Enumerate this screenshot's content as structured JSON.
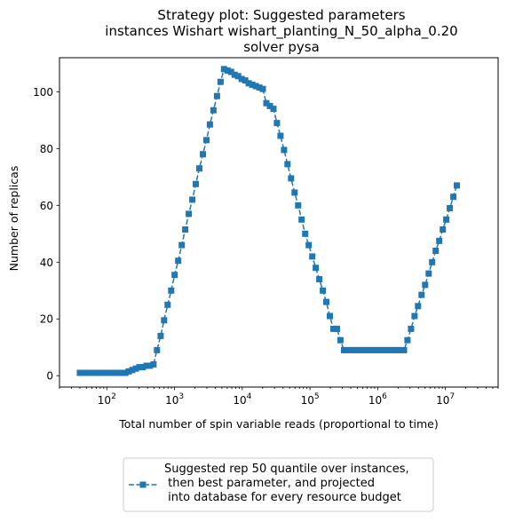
{
  "chart_data": {
    "type": "line",
    "title_lines": [
      "Strategy plot: Suggested parameters",
      "instances Wishart wishart_planting_N_50_alpha_0.20",
      "solver pysa"
    ],
    "xlabel": "Total number of spin variable reads (proportional to time)",
    "ylabel": "Number of replicas",
    "x_scale": "log",
    "xlim": [
      20,
      60000000
    ],
    "ylim": [
      -4,
      112
    ],
    "x_ticks": [
      {
        "value": 100,
        "base": "10",
        "exp": "2"
      },
      {
        "value": 1000,
        "base": "10",
        "exp": "3"
      },
      {
        "value": 10000,
        "base": "10",
        "exp": "4"
      },
      {
        "value": 100000,
        "base": "10",
        "exp": "5"
      },
      {
        "value": 1000000,
        "base": "10",
        "exp": "6"
      },
      {
        "value": 10000000,
        "base": "10",
        "exp": "7"
      }
    ],
    "y_ticks": [
      0,
      20,
      40,
      60,
      80,
      100
    ],
    "y_tick_labels": [
      "0",
      "20",
      "40",
      "60",
      "80",
      "100"
    ],
    "grid": false,
    "legend_position": "below plot, centered",
    "series": [
      {
        "name": "Suggested rep 50 quantile over instances,\n then best parameter, and projected\n into database for every resource budget",
        "color": "#1f77b4",
        "marker": "square",
        "line_style": "dashed",
        "points": [
          [
            40,
            1
          ],
          [
            45,
            1
          ],
          [
            50,
            1
          ],
          [
            57,
            1
          ],
          [
            64,
            1
          ],
          [
            72,
            1
          ],
          [
            81,
            1
          ],
          [
            92,
            1
          ],
          [
            103,
            1
          ],
          [
            116,
            1
          ],
          [
            131,
            1
          ],
          [
            148,
            1
          ],
          [
            166,
            1
          ],
          [
            188,
            1
          ],
          [
            211,
            1.5
          ],
          [
            238,
            2
          ],
          [
            269,
            2.5
          ],
          [
            303,
            3
          ],
          [
            341,
            3
          ],
          [
            385,
            3.5
          ],
          [
            434,
            3.5
          ],
          [
            489,
            4
          ],
          [
            551,
            9
          ],
          [
            622,
            14
          ],
          [
            701,
            19.5
          ],
          [
            790,
            25
          ],
          [
            891,
            30
          ],
          [
            1004,
            35.5
          ],
          [
            1132,
            40.5
          ],
          [
            1276,
            46
          ],
          [
            1439,
            51.5
          ],
          [
            1622,
            57
          ],
          [
            1829,
            62
          ],
          [
            2062,
            67.5
          ],
          [
            2325,
            73
          ],
          [
            2621,
            78
          ],
          [
            2955,
            83
          ],
          [
            3332,
            88.5
          ],
          [
            3756,
            93.5
          ],
          [
            4235,
            98.5
          ],
          [
            4775,
            103.5
          ],
          [
            5383,
            108
          ],
          [
            6069,
            107.5
          ],
          [
            6843,
            107
          ],
          [
            7715,
            106
          ],
          [
            8698,
            105.5
          ],
          [
            9806,
            104.5
          ],
          [
            11056,
            104
          ],
          [
            12465,
            103
          ],
          [
            14053,
            102.5
          ],
          [
            15844,
            102
          ],
          [
            17863,
            101.5
          ],
          [
            20139,
            101
          ],
          [
            22706,
            96
          ],
          [
            25599,
            95
          ],
          [
            28861,
            94
          ],
          [
            32539,
            89
          ],
          [
            36685,
            84.5
          ],
          [
            41361,
            79.5
          ],
          [
            46631,
            74.5
          ],
          [
            52574,
            69.5
          ],
          [
            59273,
            64.5
          ],
          [
            66827,
            60
          ],
          [
            75343,
            55
          ],
          [
            84944,
            50
          ],
          [
            95769,
            46
          ],
          [
            107973,
            42
          ],
          [
            121733,
            38
          ],
          [
            137245,
            34
          ],
          [
            154735,
            30
          ],
          [
            174453,
            26
          ],
          [
            196684,
            21
          ],
          [
            221748,
            16.5
          ],
          [
            250006,
            16.5
          ],
          [
            281865,
            12.5
          ],
          [
            317784,
            9
          ],
          [
            358280,
            9
          ],
          [
            403937,
            9
          ],
          [
            455412,
            9
          ],
          [
            513446,
            9
          ],
          [
            578875,
            9
          ],
          [
            652642,
            9
          ],
          [
            735811,
            9
          ],
          [
            829578,
            9
          ],
          [
            935293,
            9
          ],
          [
            1054479,
            9
          ],
          [
            1188853,
            9
          ],
          [
            1340352,
            9
          ],
          [
            1511158,
            9
          ],
          [
            1703729,
            9
          ],
          [
            1920839,
            9
          ],
          [
            2165617,
            9
          ],
          [
            2441588,
            9
          ],
          [
            2752726,
            12.5
          ],
          [
            3103513,
            16.5
          ],
          [
            3499004,
            21
          ],
          [
            3944894,
            24.5
          ],
          [
            4447606,
            28.5
          ],
          [
            5014377,
            32
          ],
          [
            5653374,
            36
          ],
          [
            6373800,
            40
          ],
          [
            7186033,
            44
          ],
          [
            8101772,
            47.5
          ],
          [
            9134205,
            51.5
          ],
          [
            10298205,
            55
          ],
          [
            11610526,
            59
          ],
          [
            13090074,
            63
          ],
          [
            14758169,
            67
          ]
        ]
      }
    ]
  }
}
